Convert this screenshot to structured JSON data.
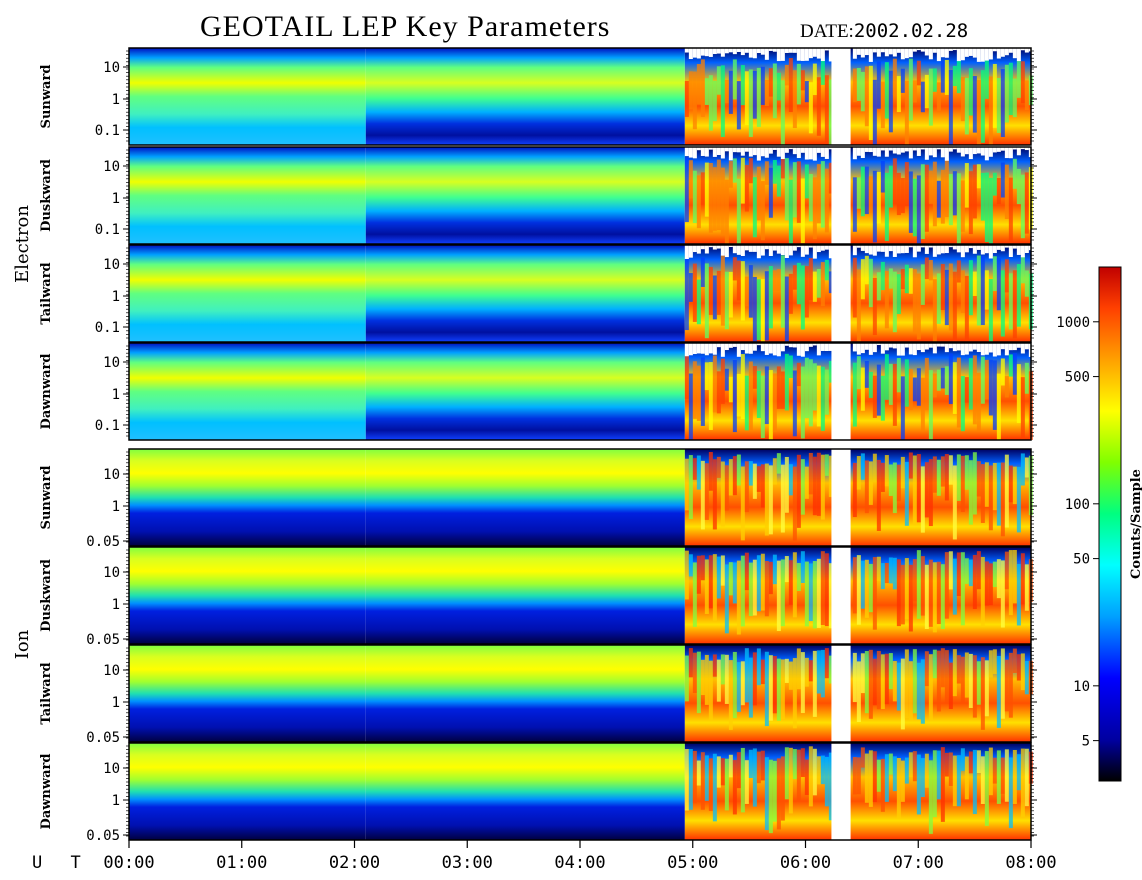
{
  "header": {
    "title": "GEOTAIL LEP Key Parameters",
    "date_label": "DATE:",
    "date_value": "2002.02.28"
  },
  "chart_data": {
    "type": "heatmap",
    "title": "GEOTAIL LEP Key Parameters",
    "date": "2002.02.28",
    "time_axis": {
      "label": "U T",
      "ticks": [
        "00:00",
        "01:00",
        "02:00",
        "03:00",
        "04:00",
        "05:00",
        "06:00",
        "07:00",
        "08:00"
      ],
      "range_hours": [
        0,
        8
      ]
    },
    "data_gaps_hours": [
      [
        6.23,
        6.4
      ]
    ],
    "groups": [
      {
        "name": "Electron",
        "panels": [
          {
            "name": "Sunward",
            "y_ticks": [
              "10",
              "1",
              "0.1"
            ],
            "y_range": [
              0.05,
              20
            ],
            "y_scale": "log"
          },
          {
            "name": "Duskward",
            "y_ticks": [
              "10",
              "1",
              "0.1"
            ],
            "y_range": [
              0.05,
              20
            ],
            "y_scale": "log"
          },
          {
            "name": "Tailward",
            "y_ticks": [
              "10",
              "1",
              "0.1"
            ],
            "y_range": [
              0.05,
              20
            ],
            "y_scale": "log"
          },
          {
            "name": "Dawnward",
            "y_ticks": [
              "10",
              "1",
              "0.1"
            ],
            "y_range": [
              0.05,
              20
            ],
            "y_scale": "log"
          }
        ]
      },
      {
        "name": "Ion",
        "panels": [
          {
            "name": "Sunward",
            "y_ticks": [
              "10",
              "1",
              "0.05"
            ],
            "y_range": [
              0.05,
              20
            ],
            "y_scale": "log"
          },
          {
            "name": "Duskward",
            "y_ticks": [
              "10",
              "1",
              "0.05"
            ],
            "y_range": [
              0.05,
              20
            ],
            "y_scale": "log"
          },
          {
            "name": "Tailward",
            "y_ticks": [
              "10",
              "1",
              "0.05"
            ],
            "y_range": [
              0.05,
              20
            ],
            "y_scale": "log"
          },
          {
            "name": "Dawnward",
            "y_ticks": [
              "10",
              "1",
              "0.05"
            ],
            "y_range": [
              0.05,
              20
            ],
            "y_scale": "log"
          }
        ]
      }
    ],
    "colorbar": {
      "label": "Counts/Sample",
      "scale": "log",
      "range": [
        3,
        2000
      ],
      "ticks": [
        1000,
        500,
        100,
        50,
        10,
        5
      ],
      "tick_labels": [
        "1000",
        "500",
        "100",
        "50",
        "10",
        "5"
      ],
      "colors": [
        "#000000",
        "#0000a0",
        "#0000ff",
        "#00a0ff",
        "#00ffff",
        "#00ff80",
        "#80ff00",
        "#ffff00",
        "#ffa000",
        "#ff4000",
        "#c00000"
      ]
    }
  }
}
